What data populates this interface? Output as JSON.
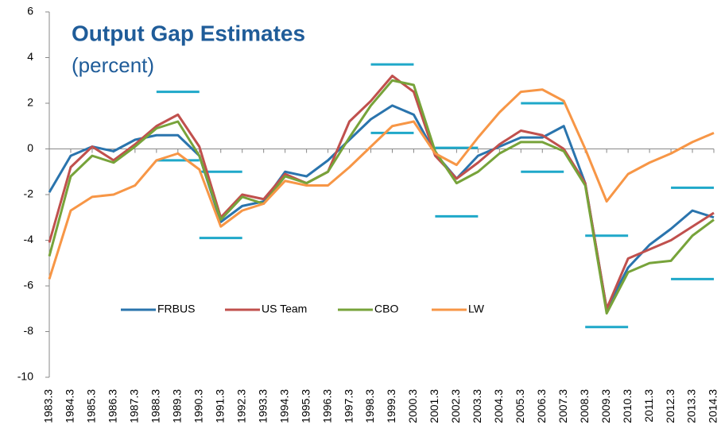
{
  "chart_data": {
    "type": "line",
    "title": "Output Gap Estimates",
    "subtitle": "(percent)",
    "categories": [
      "1983.3",
      "1984.3",
      "1985.3",
      "1986.3",
      "1987.3",
      "1988.3",
      "1989.3",
      "1990.3",
      "1991.3",
      "1992.3",
      "1993.3",
      "1994.3",
      "1995.3",
      "1996.3",
      "1997.3",
      "1998.3",
      "1999.3",
      "2000.3",
      "2001.3",
      "2002.3",
      "2003.3",
      "2004.3",
      "2005.3",
      "2006.3",
      "2007.3",
      "2008.3",
      "2009.3",
      "2010.3",
      "2011.3",
      "2012.3",
      "2013.3",
      "2014.3"
    ],
    "series": [
      {
        "name": "FRBUS",
        "color": "#2a74ad",
        "values": [
          -1.9,
          -0.3,
          0.1,
          -0.1,
          0.4,
          0.6,
          0.6,
          -0.3,
          -3.2,
          -2.5,
          -2.3,
          -1.0,
          -1.2,
          -0.5,
          0.4,
          1.3,
          1.9,
          1.5,
          -0.2,
          -1.3,
          -0.3,
          0.1,
          0.5,
          0.5,
          1.0,
          -1.5,
          -7.0,
          -5.2,
          -4.2,
          -3.5,
          -2.7,
          -3.0
        ]
      },
      {
        "name": "US Team",
        "color": "#c0504d",
        "values": [
          -4.1,
          -0.8,
          0.1,
          -0.5,
          0.2,
          1.0,
          1.5,
          0.1,
          -3.0,
          -2.0,
          -2.2,
          -1.1,
          -1.5,
          -1.0,
          1.2,
          2.1,
          3.2,
          2.5,
          -0.3,
          -1.3,
          -0.6,
          0.2,
          0.8,
          0.6,
          0.0,
          -1.5,
          -7.0,
          -4.8,
          -4.4,
          -4.0,
          -3.4,
          -2.8
        ]
      },
      {
        "name": "CBO",
        "color": "#77a33a",
        "values": [
          -4.7,
          -1.2,
          -0.3,
          -0.6,
          0.1,
          0.9,
          1.2,
          -0.3,
          -3.1,
          -2.1,
          -2.4,
          -1.2,
          -1.5,
          -1.0,
          0.5,
          1.9,
          3.0,
          2.8,
          -0.1,
          -1.5,
          -1.0,
          -0.2,
          0.3,
          0.3,
          -0.1,
          -1.6,
          -7.2,
          -5.4,
          -5.0,
          -4.9,
          -3.8,
          -3.1
        ]
      },
      {
        "name": "LW",
        "color": "#f79646",
        "values": [
          -5.7,
          -2.7,
          -2.1,
          -2.0,
          -1.6,
          -0.5,
          -0.2,
          -0.9,
          -3.4,
          -2.7,
          -2.4,
          -1.4,
          -1.6,
          -1.6,
          -0.8,
          0.1,
          1.0,
          1.2,
          -0.2,
          -0.7,
          0.5,
          1.6,
          2.5,
          2.6,
          2.1,
          0.0,
          -2.3,
          -1.1,
          -0.6,
          -0.2,
          0.3,
          0.7
        ]
      }
    ],
    "ranges": {
      "color": "#1fa8c9",
      "items": [
        {
          "start": "1988.3",
          "end": "1990.3",
          "values": [
            2.5,
            -0.5
          ]
        },
        {
          "start": "1990.3",
          "end": "1992.3",
          "values": [
            -1.0,
            -3.9
          ]
        },
        {
          "start": "1998.3",
          "end": "2000.3",
          "values": [
            3.7,
            0.7
          ]
        },
        {
          "start": "2001.3",
          "end": "2003.3",
          "values": [
            0.05,
            -2.95
          ]
        },
        {
          "start": "2005.3",
          "end": "2007.3",
          "values": [
            2.0,
            -1.0
          ]
        },
        {
          "start": "2008.3",
          "end": "2010.3",
          "values": [
            -3.8,
            -7.8
          ]
        },
        {
          "start": "2012.3",
          "end": "2014.3",
          "values": [
            -1.7,
            -5.7
          ]
        }
      ]
    },
    "ylim": [
      -10,
      6
    ],
    "yticks": [
      -10,
      -8,
      -6,
      -4,
      -2,
      0,
      2,
      4,
      6
    ]
  }
}
